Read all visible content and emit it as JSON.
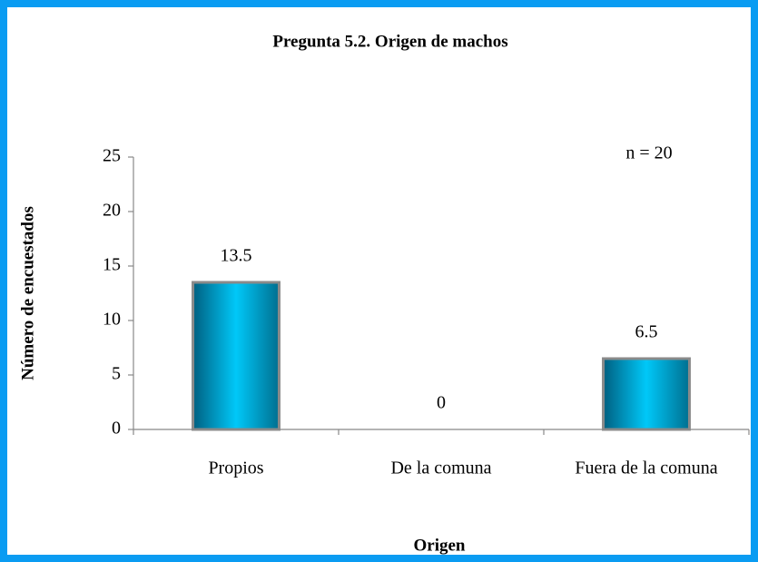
{
  "chart_data": {
    "type": "bar",
    "title": "Pregunta 5.2. Origen de machos",
    "annotation": "n = 20",
    "ylabel": "Número de encuestados",
    "xlabel": "Origen",
    "categories": [
      "Propios",
      "De la comuna",
      "Fuera de la comuna"
    ],
    "values": [
      13.5,
      0,
      6.5
    ],
    "color": "#00c8f8",
    "ylim": [
      0,
      25
    ],
    "yticks": [
      0,
      5,
      10,
      15,
      20,
      25
    ]
  }
}
